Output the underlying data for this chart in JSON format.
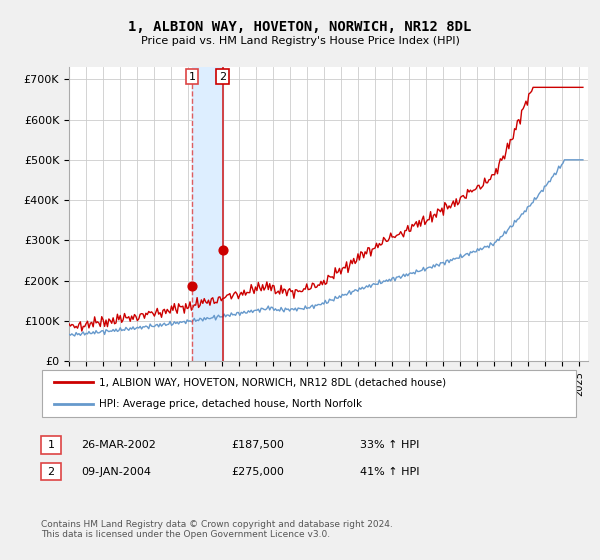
{
  "title": "1, ALBION WAY, HOVETON, NORWICH, NR12 8DL",
  "subtitle": "Price paid vs. HM Land Registry's House Price Index (HPI)",
  "ylabel_ticks": [
    "£0",
    "£100K",
    "£200K",
    "£300K",
    "£400K",
    "£500K",
    "£600K",
    "£700K"
  ],
  "ylim": [
    0,
    730000
  ],
  "xlim_start": 1995.0,
  "xlim_end": 2025.5,
  "sale1_date": 2002.23,
  "sale1_price": 187500,
  "sale2_date": 2004.03,
  "sale2_price": 275000,
  "sale1_label": "1",
  "sale2_label": "2",
  "legend_line1": "1, ALBION WAY, HOVETON, NORWICH, NR12 8DL (detached house)",
  "legend_line2": "HPI: Average price, detached house, North Norfolk",
  "table_row1": [
    "1",
    "26-MAR-2002",
    "£187,500",
    "33% ↑ HPI"
  ],
  "table_row2": [
    "2",
    "09-JAN-2004",
    "£275,000",
    "41% ↑ HPI"
  ],
  "footnote": "Contains HM Land Registry data © Crown copyright and database right 2024.\nThis data is licensed under the Open Government Licence v3.0.",
  "hpi_color": "#6699cc",
  "price_color": "#cc0000",
  "vline1_color": "#dd4444",
  "vline2_color": "#cc0000",
  "shade_color": "#ddeeff",
  "background_color": "#f0f0f0",
  "plot_bg_color": "#ffffff",
  "grid_color": "#cccccc",
  "legend_border_color": "#aaaaaa"
}
